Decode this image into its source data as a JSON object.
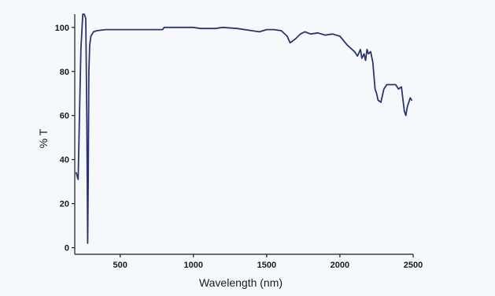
{
  "chart_data": {
    "type": "line",
    "title": "",
    "xlabel": "Wavelength (nm)",
    "ylabel": "% T",
    "xlim": [
      190,
      2500
    ],
    "ylim": [
      -3,
      106
    ],
    "xticks": [
      500,
      1000,
      1500,
      2000,
      2500
    ],
    "yticks": [
      0,
      20,
      40,
      60,
      80,
      100
    ],
    "grid": false,
    "legend": "none",
    "colors": {
      "line": "#2d3570",
      "axis": "#1a1a1a",
      "background": "#f6f9fc"
    },
    "series": [
      {
        "x": [
          200,
          208,
          213,
          222,
          232,
          245,
          255,
          265,
          272,
          278,
          282,
          286,
          292,
          300,
          318,
          340,
          400,
          500,
          600,
          700,
          790,
          800,
          900,
          1000,
          1050,
          1100,
          1150,
          1200,
          1300,
          1400,
          1450,
          1500,
          1550,
          1600,
          1640,
          1660,
          1680,
          1700,
          1730,
          1760,
          1800,
          1850,
          1900,
          1950,
          2000,
          2050,
          2100,
          2120,
          2140,
          2150,
          2165,
          2175,
          2185,
          2195,
          2210,
          2225,
          2240,
          2250,
          2260,
          2280,
          2300,
          2320,
          2350,
          2380,
          2400,
          2420,
          2440,
          2450,
          2460,
          2480,
          2490
        ],
        "y": [
          34,
          32,
          31,
          60,
          90,
          106,
          106,
          104,
          60,
          2,
          30,
          80,
          92,
          96,
          98,
          98.5,
          99,
          99,
          99,
          99,
          99,
          100,
          100,
          100,
          99.5,
          99.5,
          99.5,
          100,
          99.5,
          98.5,
          98,
          99,
          99,
          98.5,
          96,
          93,
          94,
          95,
          97,
          98,
          97,
          97.5,
          96.5,
          97,
          96,
          92,
          89,
          87,
          90,
          86,
          88,
          85,
          90,
          88,
          89,
          84,
          72,
          70,
          67,
          66,
          72,
          74,
          74,
          74,
          72,
          73,
          62,
          60,
          64,
          68,
          67
        ]
      }
    ]
  }
}
